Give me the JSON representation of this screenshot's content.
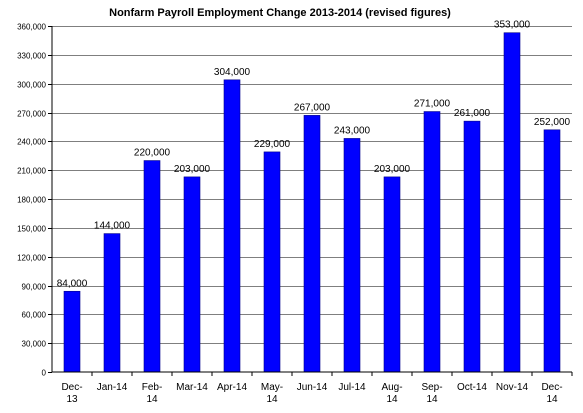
{
  "chart_data": {
    "type": "bar",
    "title": "Nonfarm Payroll Employment Change 2013-2014  (revised figures)",
    "categories": [
      "Dec-13",
      "Jan-14",
      "Feb-14",
      "Mar-14",
      "Apr-14",
      "May-14",
      "Jun-14",
      "Jul-14",
      "Aug-14",
      "Sep-14",
      "Oct-14",
      "Nov-14",
      "Dec-14"
    ],
    "category_lines": [
      [
        "Dec-",
        "13"
      ],
      [
        "Jan-14"
      ],
      [
        "Feb-",
        "14"
      ],
      [
        "Mar-14"
      ],
      [
        "Apr-14"
      ],
      [
        "May-",
        "14"
      ],
      [
        "Jun-14"
      ],
      [
        "Jul-14"
      ],
      [
        "Aug-",
        "14"
      ],
      [
        "Sep-",
        "14"
      ],
      [
        "Oct-14"
      ],
      [
        "Nov-14"
      ],
      [
        "Dec-",
        "14"
      ]
    ],
    "values": [
      84000,
      144000,
      220000,
      203000,
      304000,
      229000,
      267000,
      243000,
      203000,
      271000,
      261000,
      353000,
      252000
    ],
    "data_labels": [
      "84,000",
      "144,000",
      "220,000",
      "203,000",
      "304,000",
      "229,000",
      "267,000",
      "243,000",
      "203,000",
      "271,000",
      "261,000",
      "353,000",
      "252,000"
    ],
    "ylim": [
      0,
      360000
    ],
    "yticks": [
      0,
      30000,
      60000,
      90000,
      120000,
      150000,
      180000,
      210000,
      240000,
      270000,
      300000,
      330000,
      360000
    ],
    "ytick_labels": [
      "0",
      "30,000",
      "60,000",
      "90,000",
      "120,000",
      "150,000",
      "180,000",
      "210,000",
      "240,000",
      "270,000",
      "300,000",
      "330,000",
      "360,000"
    ],
    "xlabel": "",
    "ylabel": "",
    "grid": true,
    "legend": "none",
    "colors": {
      "bar": "#0000ff",
      "bar_edge": "#00008b",
      "grid": "#000000"
    }
  }
}
